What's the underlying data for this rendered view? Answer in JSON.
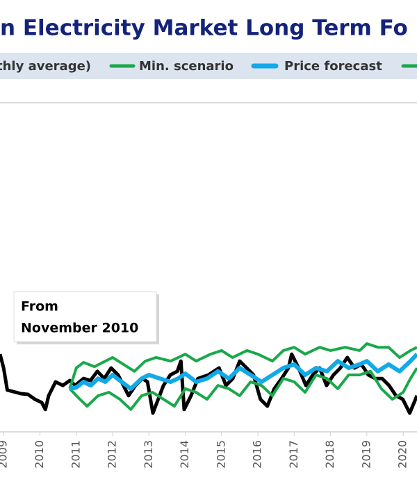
{
  "chart_data": {
    "type": "line",
    "title": "n Electricity Market Long Term Fo",
    "annotation": [
      "From",
      "November 2010"
    ],
    "xlim": [
      2008.9,
      2020.38
    ],
    "ylim": [
      0,
      100
    ],
    "xticks": [
      2009,
      2010,
      2011,
      2012,
      2013,
      2014,
      2015,
      2016,
      2017,
      2018,
      2019,
      2020
    ],
    "series": [
      {
        "name": "thly average)",
        "color": "#000000",
        "x": [
          2008.9,
          2009.0,
          2009.1,
          2009.48,
          2009.67,
          2009.86,
          2010.05,
          2010.15,
          2010.24,
          2010.43,
          2010.63,
          2010.82,
          2010.97,
          2011.2,
          2011.39,
          2011.58,
          2011.77,
          2011.96,
          2012.15,
          2012.44,
          2012.63,
          2012.82,
          2012.96,
          2013.11,
          2013.4,
          2013.59,
          2013.78,
          2013.88,
          2013.97,
          2014.16,
          2014.35,
          2014.64,
          2014.93,
          2015.12,
          2015.31,
          2015.5,
          2015.69,
          2015.88,
          2016.07,
          2016.26,
          2016.45,
          2016.65,
          2016.84,
          2016.93,
          2017.12,
          2017.32,
          2017.51,
          2017.7,
          2017.89,
          2018.08,
          2018.27,
          2018.46,
          2018.66,
          2018.85,
          2019.04,
          2019.23,
          2019.42,
          2019.61,
          2019.8,
          2019.99,
          2020.18,
          2020.38
        ],
        "values": [
          23.6,
          19.4,
          12.7,
          11.6,
          11.4,
          9.9,
          8.9,
          6.8,
          11.0,
          15.2,
          14.1,
          15.6,
          14.1,
          16.2,
          15.6,
          18.4,
          16.2,
          19.4,
          17.3,
          11.0,
          14.1,
          16.2,
          15.2,
          5.7,
          14.1,
          17.3,
          18.4,
          21.5,
          6.8,
          11.0,
          16.2,
          17.3,
          19.4,
          14.1,
          16.2,
          21.5,
          19.4,
          17.3,
          9.9,
          7.8,
          13.1,
          16.2,
          19.4,
          23.6,
          19.4,
          14.1,
          17.3,
          19.4,
          14.1,
          17.3,
          19.4,
          22.6,
          19.4,
          20.5,
          17.3,
          16.2,
          16.2,
          14.1,
          11.0,
          9.9,
          5.7,
          11.0
        ]
      },
      {
        "name": "Min. scenario",
        "color": "#1aa84b",
        "x": [
          2010.82,
          2011.1,
          2011.3,
          2011.6,
          2011.9,
          2012.2,
          2012.5,
          2012.8,
          2013.1,
          2013.4,
          2013.7,
          2014.0,
          2014.3,
          2014.6,
          2014.9,
          2015.2,
          2015.5,
          2015.8,
          2016.1,
          2016.4,
          2016.7,
          2017.0,
          2017.3,
          2017.6,
          2017.9,
          2018.2,
          2018.5,
          2018.8,
          2019.1,
          2019.4,
          2019.7,
          2020.0,
          2020.2,
          2020.38
        ],
        "values": [
          13.1,
          9.9,
          7.8,
          11.0,
          12.0,
          9.9,
          6.8,
          11.0,
          12.0,
          9.9,
          7.8,
          13.1,
          12.0,
          9.9,
          14.1,
          13.1,
          11.0,
          15.2,
          14.1,
          11.0,
          16.2,
          15.2,
          12.0,
          17.3,
          16.2,
          13.1,
          17.3,
          17.3,
          18.4,
          13.1,
          9.9,
          12.0,
          16.2,
          19.4
        ]
      },
      {
        "name": "Price forecast",
        "color": "#12a9e8",
        "x": [
          2010.82,
          2011.0,
          2011.2,
          2011.4,
          2011.6,
          2011.8,
          2012.0,
          2012.2,
          2012.5,
          2012.8,
          2013.0,
          2013.3,
          2013.6,
          2013.8,
          2014.0,
          2014.3,
          2014.6,
          2014.9,
          2015.2,
          2015.5,
          2015.8,
          2016.1,
          2016.4,
          2016.7,
          2017.0,
          2017.3,
          2017.6,
          2017.9,
          2018.2,
          2018.5,
          2018.8,
          2019.0,
          2019.3,
          2019.6,
          2019.9,
          2020.2,
          2020.38
        ],
        "values": [
          13.1,
          13.5,
          15.2,
          14.1,
          16.2,
          15.2,
          17.3,
          15.6,
          13.1,
          16.2,
          17.3,
          16.2,
          15.2,
          16.2,
          17.7,
          15.2,
          16.2,
          18.4,
          16.2,
          19.4,
          17.3,
          15.2,
          17.3,
          19.4,
          20.5,
          17.3,
          19.4,
          18.4,
          21.5,
          19.4,
          20.5,
          21.5,
          18.4,
          20.5,
          18.4,
          21.5,
          23.6
        ]
      },
      {
        "color": "#1aa84b",
        "x": [
          2010.82,
          2011.0,
          2011.2,
          2011.5,
          2011.8,
          2012.0,
          2012.3,
          2012.6,
          2012.9,
          2013.2,
          2013.6,
          2014.0,
          2014.3,
          2014.7,
          2015.0,
          2015.3,
          2015.7,
          2016.0,
          2016.4,
          2016.7,
          2017.0,
          2017.3,
          2017.7,
          2018.0,
          2018.4,
          2018.8,
          2019.0,
          2019.3,
          2019.6,
          2019.9,
          2020.2,
          2020.38
        ],
        "values": [
          13.1,
          19.4,
          21.1,
          19.8,
          21.5,
          22.6,
          20.5,
          18.4,
          21.5,
          22.6,
          21.5,
          23.6,
          21.5,
          23.6,
          24.7,
          22.6,
          24.7,
          23.6,
          21.5,
          24.7,
          25.7,
          23.6,
          25.7,
          24.7,
          25.7,
          24.7,
          26.8,
          25.7,
          25.7,
          22.6,
          24.7,
          25.7
        ]
      }
    ]
  }
}
